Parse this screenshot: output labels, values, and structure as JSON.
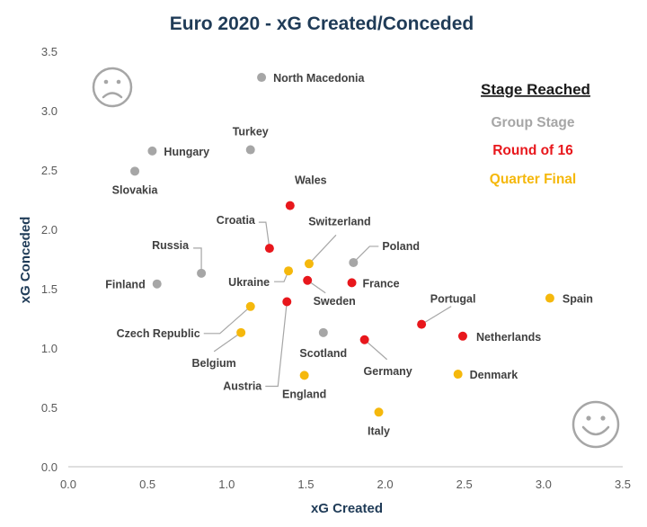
{
  "chart_data": {
    "type": "scatter",
    "title": "Euro 2020 - xG Created/Conceded",
    "xlabel": "xG Created",
    "ylabel": "xG Conceded",
    "xlim": [
      0,
      3.5
    ],
    "ylim": [
      0,
      3.5
    ],
    "xticks": [
      "0.0",
      "0.5",
      "1.0",
      "1.5",
      "2.0",
      "2.5",
      "3.0",
      "3.5"
    ],
    "yticks": [
      "0.0",
      "0.5",
      "1.0",
      "1.5",
      "2.0",
      "2.5",
      "3.0",
      "3.5"
    ],
    "legend": {
      "title": "Stage Reached",
      "position": "top-right",
      "items": [
        {
          "key": "group",
          "label": "Group Stage",
          "color": "#a6a6a6"
        },
        {
          "key": "r16",
          "label": "Round of 16",
          "color": "#e8171c"
        },
        {
          "key": "qf",
          "label": "Quarter Final",
          "color": "#f5b80c"
        }
      ]
    },
    "points": [
      {
        "team": "North Macedonia",
        "x": 1.22,
        "y": 3.28,
        "stage": "group"
      },
      {
        "team": "Turkey",
        "x": 1.15,
        "y": 2.67,
        "stage": "group"
      },
      {
        "team": "Hungary",
        "x": 0.53,
        "y": 2.66,
        "stage": "group"
      },
      {
        "team": "Slovakia",
        "x": 0.42,
        "y": 2.49,
        "stage": "group"
      },
      {
        "team": "Russia",
        "x": 0.84,
        "y": 1.63,
        "stage": "group"
      },
      {
        "team": "Finland",
        "x": 0.56,
        "y": 1.54,
        "stage": "group"
      },
      {
        "team": "Poland",
        "x": 1.8,
        "y": 1.72,
        "stage": "group"
      },
      {
        "team": "Scotland",
        "x": 1.61,
        "y": 1.13,
        "stage": "group"
      },
      {
        "team": "Wales",
        "x": 1.4,
        "y": 2.2,
        "stage": "r16"
      },
      {
        "team": "Croatia",
        "x": 1.27,
        "y": 1.84,
        "stage": "r16"
      },
      {
        "team": "Sweden",
        "x": 1.51,
        "y": 1.57,
        "stage": "r16"
      },
      {
        "team": "France",
        "x": 1.79,
        "y": 1.55,
        "stage": "r16"
      },
      {
        "team": "Austria",
        "x": 1.38,
        "y": 1.39,
        "stage": "r16"
      },
      {
        "team": "Portugal",
        "x": 2.23,
        "y": 1.2,
        "stage": "r16"
      },
      {
        "team": "Netherlands",
        "x": 2.49,
        "y": 1.1,
        "stage": "r16"
      },
      {
        "team": "Germany",
        "x": 1.87,
        "y": 1.07,
        "stage": "r16"
      },
      {
        "team": "Switzerland",
        "x": 1.52,
        "y": 1.71,
        "stage": "qf"
      },
      {
        "team": "Ukraine",
        "x": 1.39,
        "y": 1.65,
        "stage": "qf"
      },
      {
        "team": "Czech Republic",
        "x": 1.15,
        "y": 1.35,
        "stage": "qf"
      },
      {
        "team": "Belgium",
        "x": 1.09,
        "y": 1.13,
        "stage": "qf"
      },
      {
        "team": "England",
        "x": 1.49,
        "y": 0.77,
        "stage": "qf"
      },
      {
        "team": "Denmark",
        "x": 2.46,
        "y": 0.78,
        "stage": "qf"
      },
      {
        "team": "Spain",
        "x": 3.04,
        "y": 1.42,
        "stage": "qf"
      },
      {
        "team": "Italy",
        "x": 1.96,
        "y": 0.46,
        "stage": "qf"
      }
    ],
    "annotations": [
      {
        "name": "sad-face-icon",
        "meaning": "worst quadrant"
      },
      {
        "name": "happy-face-icon",
        "meaning": "best quadrant"
      }
    ]
  }
}
